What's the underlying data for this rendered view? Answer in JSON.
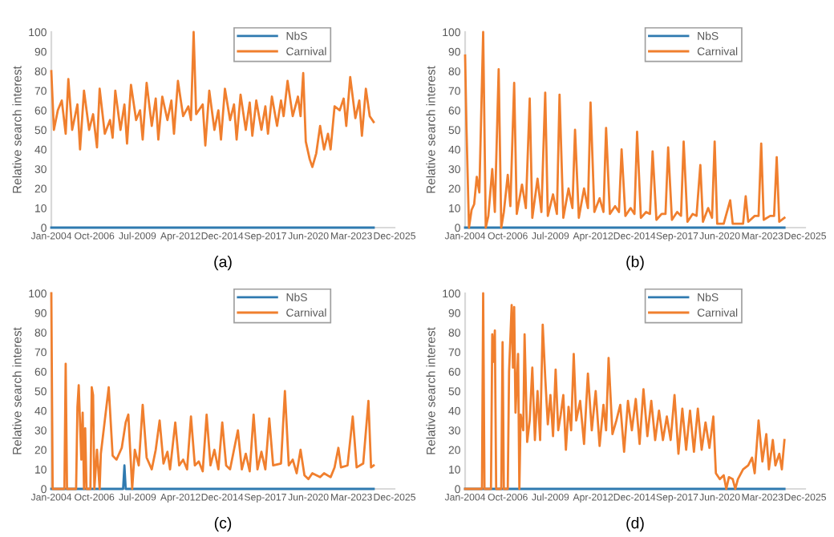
{
  "chart_data": [
    {
      "type": "line",
      "title": "(a)",
      "ylabel": "Relative search interest",
      "legend": "top right",
      "xlim": [
        "2004-01-01",
        "2025-12-01"
      ],
      "xticks": [
        {
          "value": "2004-01-01",
          "label": "Jan-2004"
        },
        {
          "value": "2006-10-01",
          "label": "Oct-2006"
        },
        {
          "value": "2009-07-01",
          "label": "Jul-2009"
        },
        {
          "value": "2012-04-01",
          "label": "Apr-2012"
        },
        {
          "value": "2014-12-01",
          "label": "Dec-2014"
        },
        {
          "value": "2017-09-01",
          "label": "Sep-2017"
        },
        {
          "value": "2020-06-01",
          "label": "Jun-2020"
        },
        {
          "value": "2023-03-01",
          "label": "Mar-2023"
        },
        {
          "value": "2025-12-01",
          "label": "Dec-2025"
        }
      ],
      "ylim": [
        0,
        100
      ],
      "yticks": [
        0,
        10,
        20,
        30,
        40,
        50,
        60,
        70,
        80,
        90,
        100
      ],
      "series": [
        {
          "name": "NbS",
          "color": "#2f7ab0",
          "x": [
            "2004-01",
            "2024-08"
          ],
          "values": [
            0,
            0
          ]
        },
        {
          "name": "Carnival",
          "color": "#f07f2e",
          "x": [
            "2004-01",
            "2004-03",
            "2004-06",
            "2004-09",
            "2004-12",
            "2005-02",
            "2005-05",
            "2005-09",
            "2005-11",
            "2006-02",
            "2006-06",
            "2006-09",
            "2006-12",
            "2007-02",
            "2007-06",
            "2007-10",
            "2007-12",
            "2008-02",
            "2008-06",
            "2008-09",
            "2008-11",
            "2009-02",
            "2009-06",
            "2009-09",
            "2009-11",
            "2010-02",
            "2010-06",
            "2010-09",
            "2010-11",
            "2011-02",
            "2011-06",
            "2011-09",
            "2011-11",
            "2012-02",
            "2012-06",
            "2012-10",
            "2012-12",
            "2013-02",
            "2013-04",
            "2013-09",
            "2013-11",
            "2014-02",
            "2014-06",
            "2014-09",
            "2014-11",
            "2015-02",
            "2015-06",
            "2015-09",
            "2015-11",
            "2016-02",
            "2016-06",
            "2016-09",
            "2016-11",
            "2017-02",
            "2017-06",
            "2017-09",
            "2017-11",
            "2018-02",
            "2018-06",
            "2018-09",
            "2018-11",
            "2019-02",
            "2019-06",
            "2019-10",
            "2019-12",
            "2020-02",
            "2020-04",
            "2020-07",
            "2020-09",
            "2020-12",
            "2021-03",
            "2021-06",
            "2021-09",
            "2021-11",
            "2022-02",
            "2022-06",
            "2022-09",
            "2022-11",
            "2023-02",
            "2023-06",
            "2023-09",
            "2023-11",
            "2024-02",
            "2024-05",
            "2024-08"
          ],
          "values": [
            80,
            50,
            60,
            65,
            48,
            76,
            50,
            63,
            40,
            70,
            50,
            58,
            41,
            71,
            48,
            55,
            46,
            70,
            50,
            63,
            43,
            73,
            55,
            60,
            45,
            74,
            52,
            66,
            45,
            67,
            55,
            65,
            48,
            75,
            57,
            62,
            55,
            100,
            58,
            63,
            42,
            70,
            50,
            60,
            45,
            71,
            55,
            63,
            45,
            68,
            50,
            64,
            47,
            65,
            50,
            62,
            48,
            67,
            52,
            65,
            57,
            75,
            57,
            67,
            57,
            79,
            44,
            35,
            31,
            38,
            52,
            40,
            48,
            40,
            62,
            60,
            66,
            52,
            77,
            56,
            65,
            47,
            71,
            57,
            54
          ]
        }
      ]
    },
    {
      "type": "line",
      "title": "(b)",
      "ylabel": "Relative search interest",
      "legend": "top right",
      "xlim": [
        "2004-01-01",
        "2025-12-01"
      ],
      "xticks": [
        {
          "value": "2004-01-01",
          "label": "Jan-2004"
        },
        {
          "value": "2006-10-01",
          "label": "Oct-2006"
        },
        {
          "value": "2009-07-01",
          "label": "Jul-2009"
        },
        {
          "value": "2012-04-01",
          "label": "Apr-2012"
        },
        {
          "value": "2014-12-01",
          "label": "Dec-2014"
        },
        {
          "value": "2017-09-01",
          "label": "Sep-2017"
        },
        {
          "value": "2020-06-01",
          "label": "Jun-2020"
        },
        {
          "value": "2023-03-01",
          "label": "Mar-2023"
        },
        {
          "value": "2025-12-01",
          "label": "Dec-2025"
        }
      ],
      "ylim": [
        0,
        100
      ],
      "yticks": [
        0,
        10,
        20,
        30,
        40,
        50,
        60,
        70,
        80,
        90,
        100
      ],
      "series": [
        {
          "name": "NbS",
          "color": "#2f7ab0",
          "x": [
            "2004-01",
            "2024-08"
          ],
          "values": [
            0,
            0
          ]
        },
        {
          "name": "Carnival",
          "color": "#f07f2e",
          "x": [
            "2004-01",
            "2004-02",
            "2004-04",
            "2004-06",
            "2004-08",
            "2004-10",
            "2004-12",
            "2005-03",
            "2005-05",
            "2005-07",
            "2005-10",
            "2005-12",
            "2006-03",
            "2006-05",
            "2006-07",
            "2006-10",
            "2006-12",
            "2007-03",
            "2007-05",
            "2007-09",
            "2007-12",
            "2008-03",
            "2008-05",
            "2008-09",
            "2008-12",
            "2009-03",
            "2009-05",
            "2009-09",
            "2009-12",
            "2010-02",
            "2010-05",
            "2010-09",
            "2010-12",
            "2011-02",
            "2011-05",
            "2011-09",
            "2011-12",
            "2012-02",
            "2012-05",
            "2012-09",
            "2012-12",
            "2013-02",
            "2013-05",
            "2013-09",
            "2013-12",
            "2014-02",
            "2014-05",
            "2014-09",
            "2014-12",
            "2015-02",
            "2015-05",
            "2015-09",
            "2015-12",
            "2016-02",
            "2016-05",
            "2016-09",
            "2016-12",
            "2017-02",
            "2017-05",
            "2017-09",
            "2017-12",
            "2018-02",
            "2018-05",
            "2018-09",
            "2018-12",
            "2019-03",
            "2019-05",
            "2019-09",
            "2019-12",
            "2020-02",
            "2020-04",
            "2020-09",
            "2021-02",
            "2021-04",
            "2021-12",
            "2022-02",
            "2022-04",
            "2022-09",
            "2022-12",
            "2023-02",
            "2023-04",
            "2023-09",
            "2023-12",
            "2024-02",
            "2024-04",
            "2024-08"
          ],
          "values": [
            88,
            52,
            0,
            9,
            12,
            26,
            18,
            100,
            0,
            6,
            30,
            8,
            81,
            0,
            8,
            27,
            11,
            74,
            7,
            22,
            10,
            66,
            5,
            25,
            8,
            69,
            6,
            17,
            7,
            68,
            5,
            20,
            10,
            50,
            5,
            20,
            10,
            64,
            8,
            15,
            8,
            51,
            7,
            11,
            8,
            40,
            6,
            10,
            7,
            49,
            5,
            8,
            7,
            39,
            4,
            7,
            7,
            41,
            4,
            8,
            6,
            44,
            3,
            7,
            6,
            32,
            3,
            10,
            5,
            44,
            2,
            2,
            14,
            2,
            2,
            16,
            3,
            6,
            6,
            43,
            4,
            6,
            6,
            36,
            3,
            5
          ]
        }
      ]
    },
    {
      "type": "line",
      "title": "(c)",
      "ylabel": "Relative search interest",
      "legend": "top right",
      "xlim": [
        "2004-01-01",
        "2025-12-01"
      ],
      "xticks": [
        {
          "value": "2004-01-01",
          "label": "Jan-2004"
        },
        {
          "value": "2006-10-01",
          "label": "Oct-2006"
        },
        {
          "value": "2009-07-01",
          "label": "Jul-2009"
        },
        {
          "value": "2012-04-01",
          "label": "Apr-2012"
        },
        {
          "value": "2014-12-01",
          "label": "Dec-2014"
        },
        {
          "value": "2017-09-01",
          "label": "Sep-2017"
        },
        {
          "value": "2020-06-01",
          "label": "Jun-2020"
        },
        {
          "value": "2023-03-01",
          "label": "Mar-2023"
        },
        {
          "value": "2025-12-01",
          "label": "Dec-2025"
        }
      ],
      "ylim": [
        0,
        100
      ],
      "yticks": [
        0,
        10,
        20,
        30,
        40,
        50,
        60,
        70,
        80,
        90,
        100
      ],
      "series": [
        {
          "name": "NbS",
          "color": "#2f7ab0",
          "x": [
            "2004-01",
            "2008-08",
            "2008-09",
            "2008-10",
            "2024-08"
          ],
          "values": [
            0,
            0,
            12,
            0,
            0
          ]
        },
        {
          "name": "Carnival",
          "color": "#f07f2e",
          "x": [
            "2004-01",
            "2004-02",
            "2004-11",
            "2004-12",
            "2005-01",
            "2005-08",
            "2005-09",
            "2005-10",
            "2005-12",
            "2006-01",
            "2006-02",
            "2006-03",
            "2006-04",
            "2006-07",
            "2006-08",
            "2006-09",
            "2006-10",
            "2006-12",
            "2007-02",
            "2007-03",
            "2007-09",
            "2007-12",
            "2008-03",
            "2008-07",
            "2008-10",
            "2008-12",
            "2009-03",
            "2009-05",
            "2009-08",
            "2009-11",
            "2010-02",
            "2010-06",
            "2010-09",
            "2010-12",
            "2011-03",
            "2011-06",
            "2011-08",
            "2011-12",
            "2012-03",
            "2012-06",
            "2012-09",
            "2012-12",
            "2013-03",
            "2013-06",
            "2013-09",
            "2013-12",
            "2014-03",
            "2014-06",
            "2014-09",
            "2014-12",
            "2015-03",
            "2015-06",
            "2015-12",
            "2016-03",
            "2016-06",
            "2016-09",
            "2016-12",
            "2017-03",
            "2017-06",
            "2017-09",
            "2017-12",
            "2018-03",
            "2018-09",
            "2018-12",
            "2019-03",
            "2019-06",
            "2019-09",
            "2019-12",
            "2020-03",
            "2020-06",
            "2020-09",
            "2021-03",
            "2021-06",
            "2021-11",
            "2022-02",
            "2022-05",
            "2022-07",
            "2022-12",
            "2023-04",
            "2023-07",
            "2023-12",
            "2024-04",
            "2024-06",
            "2024-08"
          ],
          "values": [
            100,
            0,
            0,
            64,
            0,
            0,
            42,
            53,
            15,
            39,
            0,
            31,
            0,
            0,
            52,
            48,
            0,
            20,
            0,
            18,
            52,
            17,
            15,
            21,
            34,
            38,
            0,
            20,
            12,
            43,
            16,
            10,
            20,
            35,
            13,
            19,
            10,
            34,
            12,
            15,
            10,
            37,
            12,
            14,
            9,
            38,
            12,
            20,
            10,
            34,
            12,
            10,
            30,
            10,
            18,
            9,
            38,
            10,
            19,
            10,
            36,
            12,
            13,
            50,
            12,
            15,
            8,
            20,
            7,
            5,
            8,
            6,
            8,
            6,
            11,
            21,
            11,
            12,
            37,
            11,
            13,
            45,
            11,
            12
          ]
        }
      ]
    },
    {
      "type": "line",
      "title": "(d)",
      "ylabel": "Relative search interest",
      "legend": "top right",
      "xlim": [
        "2004-01-01",
        "2025-12-01"
      ],
      "xticks": [
        {
          "value": "2004-01-01",
          "label": "Jan-2004"
        },
        {
          "value": "2006-10-01",
          "label": "Oct-2006"
        },
        {
          "value": "2009-07-01",
          "label": "Jul-2009"
        },
        {
          "value": "2012-04-01",
          "label": "Apr-2012"
        },
        {
          "value": "2014-12-01",
          "label": "Dec-2014"
        },
        {
          "value": "2017-09-01",
          "label": "Sep-2017"
        },
        {
          "value": "2020-06-01",
          "label": "Jun-2020"
        },
        {
          "value": "2023-03-01",
          "label": "Mar-2023"
        },
        {
          "value": "2025-12-01",
          "label": "Dec-2025"
        }
      ],
      "ylim": [
        0,
        100
      ],
      "yticks": [
        0,
        10,
        20,
        30,
        40,
        50,
        60,
        70,
        80,
        90,
        100
      ],
      "series": [
        {
          "name": "NbS",
          "color": "#2f7ab0",
          "x": [
            "2004-01",
            "2024-08"
          ],
          "values": [
            0,
            0
          ]
        },
        {
          "name": "Carnival",
          "color": "#f07f2e",
          "x": [
            "2004-01",
            "2005-02",
            "2005-03",
            "2005-04",
            "2005-09",
            "2005-10",
            "2005-11",
            "2005-12",
            "2006-01",
            "2006-05",
            "2006-06",
            "2006-07",
            "2006-10",
            "2006-11",
            "2007-01",
            "2007-02",
            "2007-03",
            "2007-04",
            "2007-06",
            "2007-07",
            "2007-08",
            "2007-10",
            "2007-11",
            "2008-01",
            "2008-03",
            "2008-05",
            "2008-07",
            "2008-09",
            "2008-11",
            "2009-01",
            "2009-03",
            "2009-05",
            "2009-07",
            "2009-09",
            "2009-11",
            "2010-01",
            "2010-03",
            "2010-05",
            "2010-07",
            "2010-09",
            "2010-11",
            "2011-01",
            "2011-03",
            "2011-06",
            "2011-09",
            "2011-12",
            "2012-03",
            "2012-06",
            "2012-09",
            "2012-12",
            "2013-02",
            "2013-04",
            "2013-07",
            "2013-10",
            "2014-01",
            "2014-04",
            "2014-07",
            "2014-10",
            "2015-01",
            "2015-04",
            "2015-07",
            "2015-10",
            "2016-01",
            "2016-04",
            "2016-07",
            "2016-10",
            "2017-01",
            "2017-04",
            "2017-07",
            "2017-10",
            "2018-01",
            "2018-04",
            "2018-07",
            "2018-10",
            "2019-01",
            "2019-04",
            "2019-07",
            "2019-10",
            "2020-01",
            "2020-03",
            "2020-06",
            "2020-09",
            "2020-11",
            "2021-01",
            "2021-04",
            "2021-06",
            "2021-08",
            "2021-12",
            "2022-04",
            "2022-07",
            "2022-09",
            "2022-12",
            "2023-03",
            "2023-06",
            "2023-08",
            "2023-11",
            "2024-01",
            "2024-04",
            "2024-06",
            "2024-08"
          ],
          "values": [
            0,
            0,
            100,
            0,
            0,
            79,
            65,
            81,
            0,
            0,
            75,
            0,
            0,
            60,
            94,
            62,
            93,
            39,
            69,
            0,
            38,
            30,
            79,
            24,
            35,
            62,
            25,
            50,
            25,
            84,
            57,
            33,
            48,
            27,
            61,
            30,
            38,
            48,
            20,
            42,
            30,
            69,
            35,
            45,
            23,
            59,
            30,
            50,
            22,
            43,
            30,
            67,
            28,
            35,
            43,
            19,
            45,
            30,
            46,
            23,
            51,
            27,
            45,
            25,
            40,
            25,
            37,
            25,
            48,
            18,
            41,
            20,
            40,
            19,
            41,
            20,
            34,
            21,
            37,
            8,
            5,
            7,
            0,
            6,
            5,
            0,
            5,
            10,
            12,
            16,
            8,
            35,
            14,
            28,
            10,
            25,
            12,
            18,
            10,
            25
          ]
        }
      ]
    }
  ]
}
